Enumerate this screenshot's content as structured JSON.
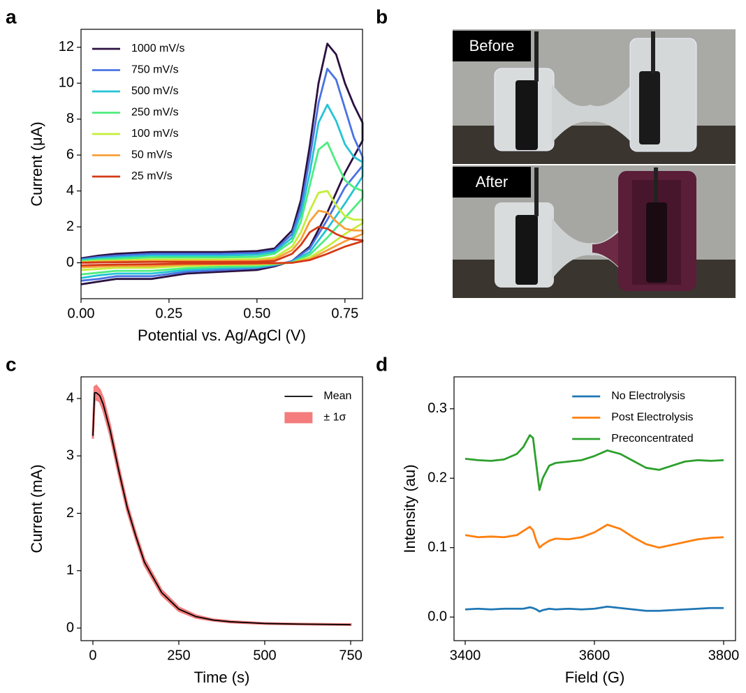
{
  "panel_labels": [
    "a",
    "b",
    "c",
    "d"
  ],
  "photos": [
    {
      "label": "Before"
    },
    {
      "label": "After"
    }
  ],
  "chart_data": [
    {
      "type": "line",
      "xlabel": "Potential vs. Ag/AgCl (V)",
      "ylabel": "Current (μA)",
      "x": [
        0,
        0.05,
        0.1,
        0.2,
        0.3,
        0.4,
        0.5,
        0.55,
        0.6,
        0.625,
        0.65,
        0.675,
        0.7,
        0.725,
        0.75,
        0.775,
        0.8,
        0.8,
        0.75,
        0.7,
        0.65,
        0.6,
        0.55,
        0.5,
        0.4,
        0.3,
        0.2,
        0.1,
        0.05,
        0
      ],
      "series": [
        {
          "name": "1000 mV/s",
          "color": "#2b1140",
          "values": [
            0.25,
            0.4,
            0.5,
            0.6,
            0.6,
            0.6,
            0.65,
            0.8,
            1.8,
            3.5,
            6.5,
            10.0,
            12.2,
            11.6,
            10.0,
            8.8,
            7.8,
            6.8,
            5.0,
            2.8,
            0.9,
            0.1,
            -0.2,
            -0.4,
            -0.5,
            -0.6,
            -0.9,
            -0.9,
            -1.05,
            -1.2
          ]
        },
        {
          "name": "750 mV/s",
          "color": "#4a72e3",
          "values": [
            0.2,
            0.32,
            0.4,
            0.5,
            0.5,
            0.5,
            0.55,
            0.7,
            1.6,
            3.1,
            5.8,
            8.9,
            10.8,
            10.2,
            8.6,
            7.0,
            5.9,
            5.4,
            4.2,
            2.4,
            0.8,
            0.1,
            -0.15,
            -0.3,
            -0.4,
            -0.5,
            -0.75,
            -0.75,
            -0.9,
            -1.0
          ]
        },
        {
          "name": "500 mV/s",
          "color": "#24c3d4",
          "values": [
            0.15,
            0.25,
            0.3,
            0.4,
            0.4,
            0.4,
            0.45,
            0.6,
            1.4,
            2.7,
            5.0,
            7.8,
            8.8,
            7.9,
            6.6,
            5.9,
            5.6,
            4.8,
            3.3,
            1.9,
            0.6,
            0.05,
            -0.1,
            -0.25,
            -0.3,
            -0.4,
            -0.6,
            -0.6,
            -0.7,
            -0.85
          ]
        },
        {
          "name": "250 mV/s",
          "color": "#4ded7e",
          "values": [
            0.1,
            0.18,
            0.22,
            0.3,
            0.3,
            0.3,
            0.33,
            0.5,
            1.2,
            2.3,
            4.3,
            6.3,
            6.7,
            5.6,
            4.6,
            4.2,
            4.0,
            3.6,
            2.5,
            1.4,
            0.45,
            0.02,
            -0.08,
            -0.18,
            -0.22,
            -0.3,
            -0.45,
            -0.45,
            -0.55,
            -0.65
          ]
        },
        {
          "name": "100 mV/s",
          "color": "#c4ee3a",
          "values": [
            0.05,
            0.1,
            0.12,
            0.18,
            0.18,
            0.18,
            0.2,
            0.3,
            0.9,
            1.7,
            2.9,
            3.9,
            4.0,
            3.2,
            2.6,
            2.4,
            2.4,
            2.2,
            1.6,
            0.9,
            0.3,
            0.0,
            -0.05,
            -0.1,
            -0.12,
            -0.18,
            -0.28,
            -0.28,
            -0.35,
            -0.4
          ]
        },
        {
          "name": "50 mV/s",
          "color": "#f8a03b",
          "values": [
            0.02,
            0.06,
            0.08,
            0.1,
            0.1,
            0.1,
            0.12,
            0.2,
            0.7,
            1.3,
            2.3,
            2.9,
            2.8,
            2.3,
            1.9,
            1.8,
            1.8,
            1.6,
            1.2,
            0.7,
            0.2,
            0.0,
            -0.03,
            -0.06,
            -0.08,
            -0.1,
            -0.18,
            -0.18,
            -0.22,
            -0.25
          ]
        },
        {
          "name": "25 mV/s",
          "color": "#d43a17",
          "values": [
            0,
            0.02,
            0.03,
            0.05,
            0.05,
            0.05,
            0.06,
            0.1,
            0.5,
            1.0,
            1.7,
            2.0,
            1.9,
            1.6,
            1.4,
            1.3,
            1.25,
            1.2,
            0.9,
            0.5,
            0.15,
            0,
            -0.02,
            -0.03,
            -0.04,
            -0.05,
            -0.08,
            -0.1,
            -0.12,
            -0.15
          ]
        }
      ],
      "xlim": [
        0,
        0.8
      ],
      "xticks": [
        {
          "value": 0,
          "label": "0.00"
        },
        {
          "value": 0.25,
          "label": "0.25"
        },
        {
          "value": 0.5,
          "label": "0.50"
        },
        {
          "value": 0.75,
          "label": "0.75"
        }
      ],
      "ylim": [
        -2,
        13
      ],
      "yticks": [
        0,
        2,
        4,
        6,
        8,
        10,
        12
      ],
      "legend": "upper left"
    },
    {
      "type": "line",
      "xlabel": "Time (s)",
      "ylabel": "Current (mA)",
      "x": [
        0,
        5,
        10,
        20,
        30,
        50,
        75,
        100,
        125,
        150,
        200,
        250,
        300,
        350,
        400,
        500,
        600,
        750
      ],
      "series": [
        {
          "name": "Mean",
          "color": "#000000",
          "values": [
            3.35,
            4.1,
            4.1,
            4.05,
            3.9,
            3.45,
            2.75,
            2.1,
            1.6,
            1.15,
            0.62,
            0.33,
            0.2,
            0.14,
            0.11,
            0.08,
            0.07,
            0.06
          ]
        },
        {
          "name": "± 1σ",
          "color": "#f47c7c",
          "style": "band",
          "values": [
            0.05,
            0.1,
            0.12,
            0.1,
            0.1,
            0.08,
            0.07,
            0.06,
            0.05,
            0.05,
            0.04,
            0.03,
            0.02,
            0.01,
            0.01,
            0.005,
            0.005,
            0.005
          ]
        }
      ],
      "xlim": [
        -34.5,
        784.5
      ],
      "xticks": [
        0,
        250,
        500,
        750
      ],
      "ylim": [
        -0.219,
        4.377
      ],
      "yticks": [
        0,
        1,
        2,
        3,
        4
      ],
      "legend": "upper right"
    },
    {
      "type": "line",
      "xlabel": "Field (G)",
      "ylabel": "Intensity (au)",
      "x": [
        3400,
        3420,
        3440,
        3460,
        3480,
        3490,
        3500,
        3505,
        3510,
        3515,
        3520,
        3530,
        3540,
        3560,
        3580,
        3600,
        3620,
        3640,
        3660,
        3680,
        3700,
        3720,
        3740,
        3760,
        3780,
        3800
      ],
      "series": [
        {
          "name": "No Electrolysis",
          "color": "#1f77b4",
          "values": [
            0.011,
            0.012,
            0.011,
            0.012,
            0.012,
            0.012,
            0.014,
            0.013,
            0.011,
            0.008,
            0.01,
            0.012,
            0.011,
            0.012,
            0.011,
            0.012,
            0.015,
            0.013,
            0.011,
            0.009,
            0.009,
            0.01,
            0.011,
            0.012,
            0.013,
            0.013
          ]
        },
        {
          "name": "Post Electrolysis",
          "color": "#ff7f0e",
          "values": [
            0.118,
            0.115,
            0.116,
            0.115,
            0.118,
            0.124,
            0.13,
            0.125,
            0.11,
            0.1,
            0.104,
            0.11,
            0.113,
            0.112,
            0.115,
            0.122,
            0.133,
            0.127,
            0.115,
            0.105,
            0.1,
            0.104,
            0.108,
            0.112,
            0.114,
            0.115
          ]
        },
        {
          "name": "Preconcentrated",
          "color": "#2ca02c",
          "values": [
            0.228,
            0.226,
            0.225,
            0.227,
            0.235,
            0.245,
            0.262,
            0.258,
            0.22,
            0.183,
            0.2,
            0.218,
            0.222,
            0.224,
            0.226,
            0.232,
            0.24,
            0.235,
            0.225,
            0.215,
            0.212,
            0.218,
            0.224,
            0.226,
            0.225,
            0.226
          ]
        }
      ],
      "xlim": [
        3382.7,
        3818.4
      ],
      "xticks": [
        3400,
        3600,
        3800
      ],
      "ylim": [
        -0.034,
        0.346
      ],
      "yticks": [
        {
          "value": 0,
          "label": "0.0"
        },
        0.1,
        0.2,
        0.3
      ],
      "legend": "upper right"
    }
  ]
}
